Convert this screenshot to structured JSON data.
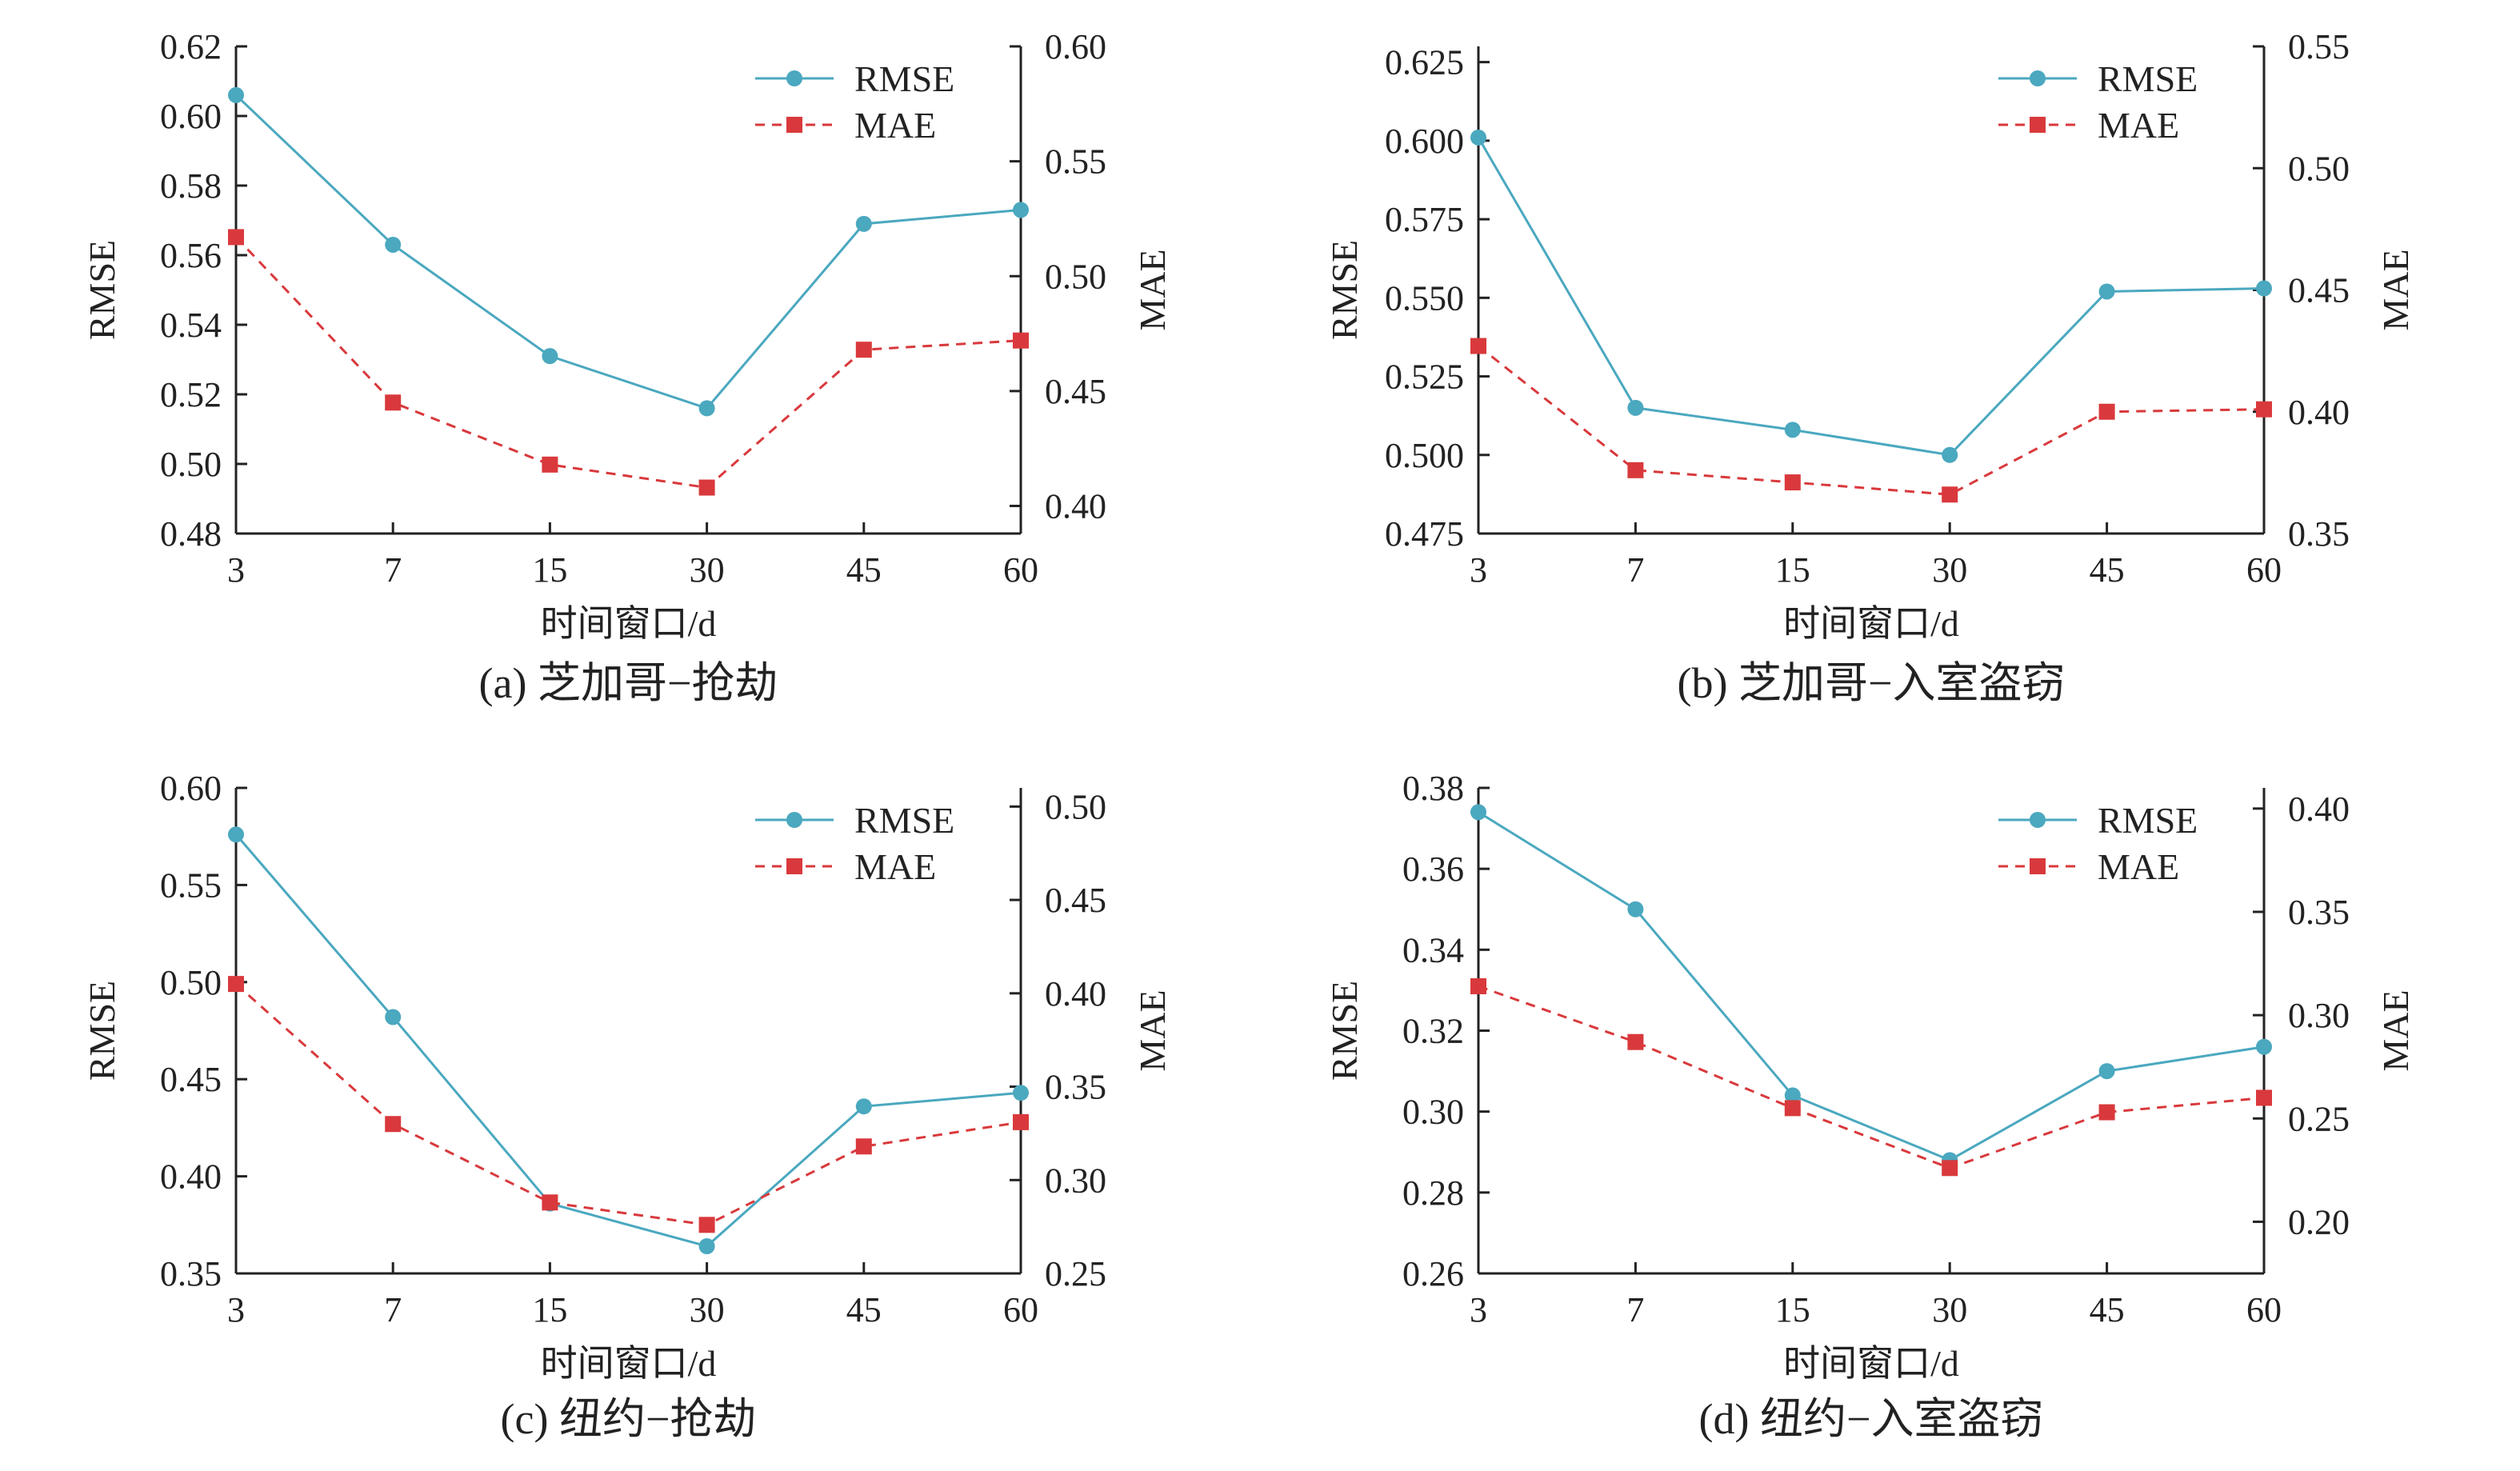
{
  "colors": {
    "rmse": "#4aa8bf",
    "mae": "#d9393c",
    "axis": "#222222"
  },
  "chart_data": [
    {
      "type": "line",
      "caption": "(a) 芝加哥−抢劫",
      "categories": [
        "3",
        "7",
        "15",
        "30",
        "45",
        "60"
      ],
      "xlabel": "时间窗口/d",
      "ylabel": "RMSE",
      "y2label": "MAE",
      "ylim": [
        0.48,
        0.62
      ],
      "yticks": [
        "0.48",
        "0.50",
        "0.52",
        "0.54",
        "0.56",
        "0.58",
        "0.60",
        "0.62"
      ],
      "y2lim": [
        0.388,
        0.6
      ],
      "y2ticks": [
        "0.40",
        "0.45",
        "0.50",
        "0.55",
        "0.60"
      ],
      "legend": "top-right",
      "series": [
        {
          "name": "RMSE",
          "axis": "left",
          "values": [
            0.606,
            0.563,
            0.531,
            0.516,
            0.569,
            0.573
          ]
        },
        {
          "name": "MAE",
          "axis": "right",
          "values": [
            0.517,
            0.445,
            0.418,
            0.408,
            0.468,
            0.472
          ]
        }
      ]
    },
    {
      "type": "line",
      "caption": "(b) 芝加哥−入室盗窃",
      "categories": [
        "3",
        "7",
        "15",
        "30",
        "45",
        "60"
      ],
      "xlabel": "时间窗口/d",
      "ylabel": "RMSE",
      "y2label": "MAE",
      "ylim": [
        0.475,
        0.63
      ],
      "yticks": [
        "0.475",
        "0.500",
        "0.525",
        "0.550",
        "0.575",
        "0.600",
        "0.625"
      ],
      "y2lim": [
        0.35,
        0.55
      ],
      "y2ticks": [
        "0.35",
        "0.40",
        "0.45",
        "0.50",
        "0.55"
      ],
      "legend": "top-right",
      "series": [
        {
          "name": "RMSE",
          "axis": "left",
          "values": [
            0.601,
            0.515,
            0.508,
            0.5,
            0.552,
            0.553
          ]
        },
        {
          "name": "MAE",
          "axis": "right",
          "values": [
            0.427,
            0.376,
            0.371,
            0.366,
            0.4,
            0.401
          ]
        }
      ]
    },
    {
      "type": "line",
      "caption": "(c) 纽约−抢劫",
      "categories": [
        "3",
        "7",
        "15",
        "30",
        "45",
        "60"
      ],
      "xlabel": "时间窗口/d",
      "ylabel": "RMSE",
      "y2label": "MAE",
      "ylim": [
        0.35,
        0.6
      ],
      "yticks": [
        "0.35",
        "0.40",
        "0.45",
        "0.50",
        "0.55",
        "0.60"
      ],
      "y2lim": [
        0.25,
        0.51
      ],
      "y2ticks": [
        "0.25",
        "0.30",
        "0.35",
        "0.40",
        "0.45",
        "0.50"
      ],
      "legend": "top-right",
      "series": [
        {
          "name": "RMSE",
          "axis": "left",
          "values": [
            0.576,
            0.482,
            0.386,
            0.364,
            0.436,
            0.443
          ]
        },
        {
          "name": "MAE",
          "axis": "right",
          "values": [
            0.405,
            0.33,
            0.288,
            0.276,
            0.318,
            0.331
          ]
        }
      ]
    },
    {
      "type": "line",
      "caption": "(d) 纽约−入室盗窃",
      "categories": [
        "3",
        "7",
        "15",
        "30",
        "45",
        "60"
      ],
      "xlabel": "时间窗口/d",
      "ylabel": "RMSE",
      "y2label": "MAE",
      "ylim": [
        0.26,
        0.38
      ],
      "yticks": [
        "0.26",
        "0.28",
        "0.30",
        "0.32",
        "0.34",
        "0.36",
        "0.38"
      ],
      "y2lim": [
        0.175,
        0.41
      ],
      "y2ticks": [
        "0.20",
        "0.25",
        "0.30",
        "0.35",
        "0.40"
      ],
      "legend": "top-right",
      "series": [
        {
          "name": "RMSE",
          "axis": "left",
          "values": [
            0.374,
            0.35,
            0.304,
            0.288,
            0.31,
            0.316
          ]
        },
        {
          "name": "MAE",
          "axis": "right",
          "values": [
            0.314,
            0.287,
            0.255,
            0.226,
            0.253,
            0.26
          ]
        }
      ]
    }
  ]
}
